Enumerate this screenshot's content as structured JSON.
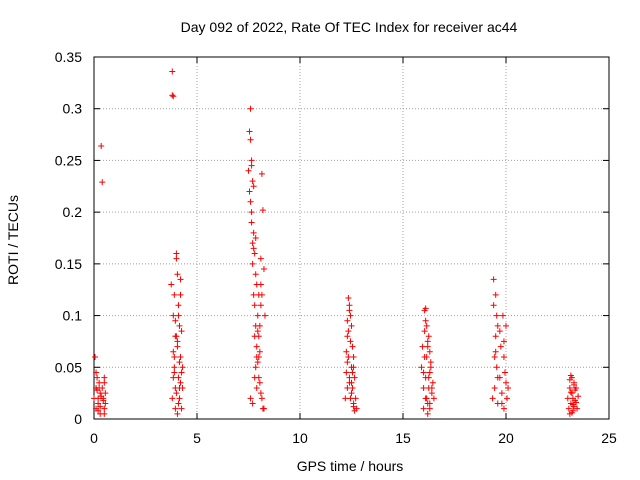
{
  "chart_data": {
    "type": "scatter",
    "title": "Day 092 of 2022, Rate Of TEC Index for receiver ac44",
    "xlabel": "GPS time / hours",
    "ylabel": "ROTI / TECUs",
    "xlim": [
      0,
      25
    ],
    "ylim": [
      0,
      0.35
    ],
    "x_ticks": [
      "0",
      "5",
      "10",
      "15",
      "20",
      "25"
    ],
    "y_ticks": [
      "0",
      "0.05",
      "0.1",
      "0.15",
      "0.2",
      "0.25",
      "0.3",
      "0.35"
    ],
    "grid": true,
    "marker": "plus",
    "color": "#ff0000",
    "series": [
      {
        "x": [
          0.0,
          0.05,
          0.1,
          0.1,
          0.15,
          0.2,
          0.2,
          0.25,
          0.3,
          0.3,
          0.35,
          0.4,
          0.4,
          0.45,
          0.5,
          0.5,
          0.5,
          0.55,
          0.55,
          0.1,
          0.15,
          0.2,
          0.25,
          0.3,
          0.35,
          0.45,
          0.5,
          3.75,
          3.8,
          3.8,
          3.85,
          3.85,
          3.9,
          3.9,
          3.95,
          3.95,
          4.0,
          4.0,
          4.05,
          4.05,
          4.1,
          4.1,
          4.15,
          4.15,
          4.2,
          4.2,
          4.25,
          4.25,
          4.3,
          4.3,
          3.85,
          3.9,
          3.95,
          4.0,
          4.05,
          4.1,
          4.15,
          4.2,
          4.25,
          3.8,
          3.85,
          3.9,
          3.95,
          4.0,
          4.05,
          4.1,
          4.15,
          4.2,
          7.5,
          7.55,
          7.6,
          7.6,
          7.65,
          7.65,
          7.7,
          7.7,
          7.75,
          7.75,
          7.8,
          7.8,
          7.85,
          7.85,
          7.9,
          7.9,
          7.95,
          8.0,
          8.0,
          8.05,
          8.1,
          8.1,
          8.15,
          8.2,
          8.25,
          8.3,
          7.55,
          7.6,
          7.65,
          7.7,
          7.75,
          7.8,
          7.85,
          7.9,
          7.95,
          8.0,
          8.05,
          8.1,
          8.15,
          8.2,
          7.6,
          7.7,
          7.8,
          7.9,
          8.0,
          8.1,
          7.65,
          7.75,
          7.85,
          7.95,
          8.05,
          8.15,
          8.25,
          12.2,
          12.25,
          12.3,
          12.3,
          12.35,
          12.35,
          12.4,
          12.4,
          12.45,
          12.45,
          12.5,
          12.5,
          12.55,
          12.55,
          12.6,
          12.6,
          12.65,
          12.7,
          12.75,
          12.25,
          12.3,
          12.35,
          12.4,
          12.45,
          12.5,
          12.55,
          12.6,
          12.65,
          12.3,
          12.4,
          12.5,
          12.6,
          15.9,
          15.95,
          16.0,
          16.0,
          16.05,
          16.05,
          16.1,
          16.1,
          16.15,
          16.15,
          16.2,
          16.2,
          16.25,
          16.25,
          16.3,
          16.3,
          16.35,
          16.4,
          16.45,
          16.5,
          16.0,
          16.05,
          16.1,
          16.15,
          16.2,
          16.25,
          16.3,
          16.35,
          16.4,
          16.1,
          16.2,
          16.3,
          19.35,
          19.4,
          19.45,
          19.45,
          19.5,
          19.5,
          19.55,
          19.55,
          19.6,
          19.6,
          19.7,
          19.75,
          19.8,
          19.85,
          19.9,
          19.9,
          19.95,
          20.0,
          20.05,
          20.1,
          19.4,
          19.5,
          19.6,
          19.7,
          19.8,
          19.9,
          20.0,
          23.0,
          23.05,
          23.1,
          23.1,
          23.15,
          23.15,
          23.2,
          23.2,
          23.25,
          23.25,
          23.3,
          23.3,
          23.35,
          23.35,
          23.4,
          23.45,
          23.5,
          23.1,
          23.2,
          23.3,
          23.4,
          23.15,
          23.25
        ],
        "y": [
          0.02,
          0.06,
          0.03,
          0.01,
          0.04,
          0.02,
          0.015,
          0.035,
          0.025,
          0.005,
          0.264,
          0.229,
          0.03,
          0.02,
          0.01,
          0.035,
          0.005,
          0.025,
          0.015,
          0.045,
          0.028,
          0.008,
          0.03,
          0.012,
          0.022,
          0.018,
          0.04,
          0.13,
          0.336,
          0.313,
          0.312,
          0.1,
          0.12,
          0.05,
          0.08,
          0.03,
          0.16,
          0.155,
          0.14,
          0.07,
          0.11,
          0.04,
          0.09,
          0.02,
          0.135,
          0.06,
          0.085,
          0.01,
          0.05,
          0.03,
          0.065,
          0.045,
          0.095,
          0.025,
          0.075,
          0.015,
          0.055,
          0.035,
          0.045,
          0.02,
          0.04,
          0.06,
          0.01,
          0.08,
          0.005,
          0.1,
          0.03,
          0.12,
          0.24,
          0.278,
          0.3,
          0.27,
          0.25,
          0.2,
          0.23,
          0.15,
          0.18,
          0.12,
          0.16,
          0.08,
          0.14,
          0.05,
          0.13,
          0.03,
          0.1,
          0.12,
          0.06,
          0.09,
          0.155,
          0.13,
          0.237,
          0.202,
          0.145,
          0.1,
          0.22,
          0.21,
          0.19,
          0.17,
          0.165,
          0.11,
          0.09,
          0.07,
          0.055,
          0.04,
          0.035,
          0.025,
          0.02,
          0.01,
          0.02,
          0.015,
          0.04,
          0.06,
          0.08,
          0.11,
          0.245,
          0.225,
          0.175,
          0.085,
          0.065,
          0.12,
          0.01,
          0.02,
          0.045,
          0.08,
          0.03,
          0.117,
          0.06,
          0.11,
          0.04,
          0.1,
          0.02,
          0.09,
          0.05,
          0.07,
          0.03,
          0.06,
          0.015,
          0.04,
          0.02,
          0.01,
          0.065,
          0.055,
          0.085,
          0.035,
          0.075,
          0.025,
          0.045,
          0.012,
          0.008,
          0.095,
          0.105,
          0.035,
          0.05,
          0.05,
          0.07,
          0.03,
          0.01,
          0.105,
          0.06,
          0.107,
          0.04,
          0.09,
          0.02,
          0.075,
          0.015,
          0.08,
          0.03,
          0.065,
          0.01,
          0.05,
          0.025,
          0.035,
          0.02,
          0.045,
          0.085,
          0.02,
          0.06,
          0.005,
          0.04,
          0.015,
          0.055,
          0.03,
          0.095,
          0.07,
          0.045,
          0.02,
          0.135,
          0.06,
          0.03,
          0.12,
          0.08,
          0.1,
          0.05,
          0.09,
          0.015,
          0.04,
          0.07,
          0.025,
          0.1,
          0.06,
          0.01,
          0.045,
          0.035,
          0.02,
          0.03,
          0.11,
          0.065,
          0.04,
          0.085,
          0.015,
          0.075,
          0.09,
          0.02,
          0.01,
          0.03,
          0.005,
          0.042,
          0.015,
          0.04,
          0.025,
          0.02,
          0.008,
          0.035,
          0.012,
          0.028,
          0.018,
          0.03,
          0.01,
          0.022,
          0.038,
          0.006,
          0.033,
          0.016,
          0.026,
          0.014
        ]
      }
    ]
  }
}
